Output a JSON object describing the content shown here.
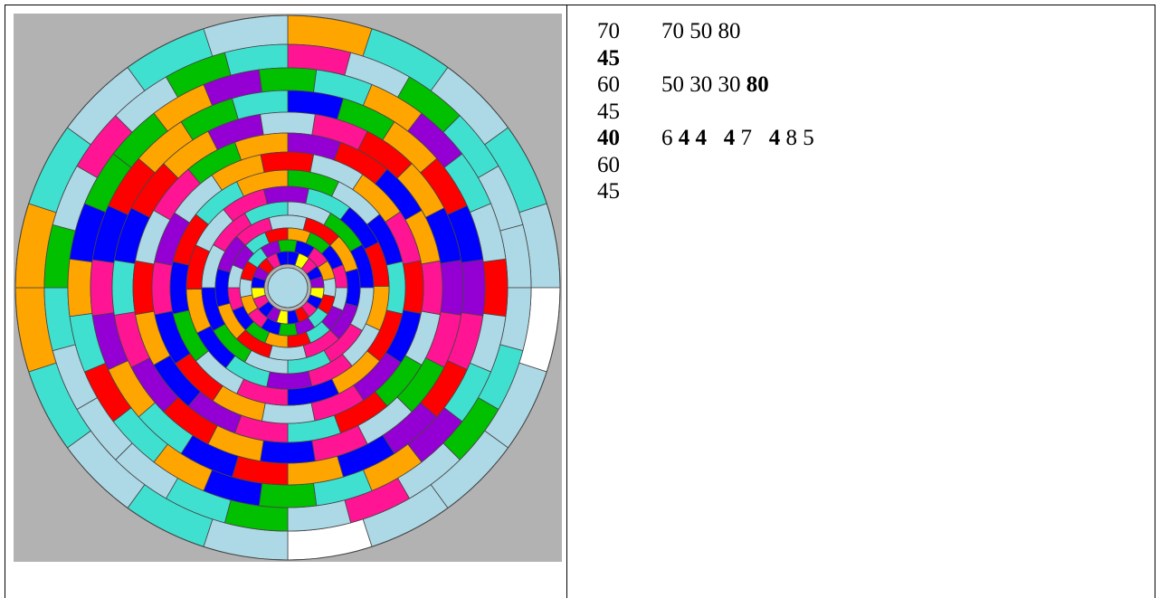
{
  "colors": {
    "background": "#b2b2b2",
    "segment_palette": [
      "#40e0d0",
      "#ffa500",
      "#ff1493",
      "#add8e6",
      "#00c000",
      "#0000ff",
      "#9400d3",
      "#ff0000",
      "#ffff00",
      "#ffffff"
    ],
    "outline": "#444444"
  },
  "notes": {
    "rows": [
      {
        "a": "70",
        "a_bold": false,
        "b": [
          {
            "t": "70 50 80",
            "bold": false
          }
        ]
      },
      {
        "a": "45",
        "a_bold": true,
        "b": []
      },
      {
        "a": "60",
        "a_bold": false,
        "b": [
          {
            "t": "50 30 30 ",
            "bold": false
          },
          {
            "t": "80",
            "bold": true
          }
        ]
      },
      {
        "a": "45",
        "a_bold": false,
        "b": []
      },
      {
        "a": "40",
        "a_bold": true,
        "b": [
          {
            "t": "6 ",
            "bold": false
          },
          {
            "t": "4 4",
            "bold": true
          },
          {
            "t": "   ",
            "bold": false
          },
          {
            "t": "4",
            "bold": true
          },
          {
            "t": " 7   ",
            "bold": false
          },
          {
            "t": "4",
            "bold": true
          },
          {
            "t": " 8 5",
            "bold": false
          }
        ]
      },
      {
        "a": "60",
        "a_bold": false,
        "b": []
      },
      {
        "a": "45",
        "a_bold": false,
        "b": []
      }
    ]
  }
}
